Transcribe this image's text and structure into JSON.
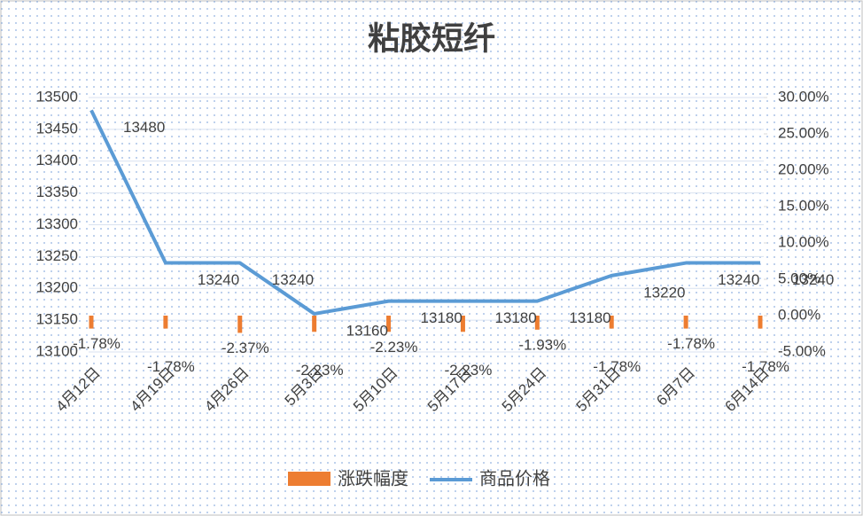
{
  "chart_data": {
    "type": "combo",
    "title": "粘胶短纤",
    "categories": [
      "4月12日",
      "4月19日",
      "4月26日",
      "5月3日",
      "5月10日",
      "5月17日",
      "5月24日",
      "5月31日",
      "6月7日",
      "6月14日"
    ],
    "series": [
      {
        "name": "涨跌幅度",
        "type": "bar",
        "axis": "y2",
        "color": "#ed7d31",
        "values": [
          -1.78,
          -1.78,
          -2.37,
          -2.23,
          -2.23,
          -2.23,
          -1.93,
          -1.78,
          -1.78,
          -1.78
        ],
        "value_labels": [
          "-1.78%",
          "-1.78%",
          "-2.37%",
          "-2.23%",
          "-2.23%",
          "-2.23%",
          "-1.93%",
          "-1.78%",
          "-1.78%",
          "-1.78%"
        ]
      },
      {
        "name": "商品价格",
        "type": "line",
        "color": "#5b9bd5",
        "values": [
          13480,
          13240,
          13240,
          13160,
          13180,
          13180,
          13180,
          13220,
          13240,
          13240
        ]
      }
    ],
    "ylim": [
      13100,
      13500
    ],
    "yticks": [
      13100,
      13150,
      13200,
      13250,
      13300,
      13350,
      13400,
      13450,
      13500
    ],
    "y2lim": [
      -5,
      30
    ],
    "y2ticks": [
      {
        "value": -5,
        "label": "-5.00%"
      },
      {
        "value": 0,
        "label": "0.00%"
      },
      {
        "value": 5,
        "label": "5.00%"
      },
      {
        "value": 10,
        "label": "10.00%"
      },
      {
        "value": 15,
        "label": "15.00%"
      },
      {
        "value": 20,
        "label": "20.00%"
      },
      {
        "value": 25,
        "label": "25.00%"
      },
      {
        "value": 30,
        "label": "30.00%"
      }
    ],
    "grid": true,
    "legend": "bottom"
  }
}
